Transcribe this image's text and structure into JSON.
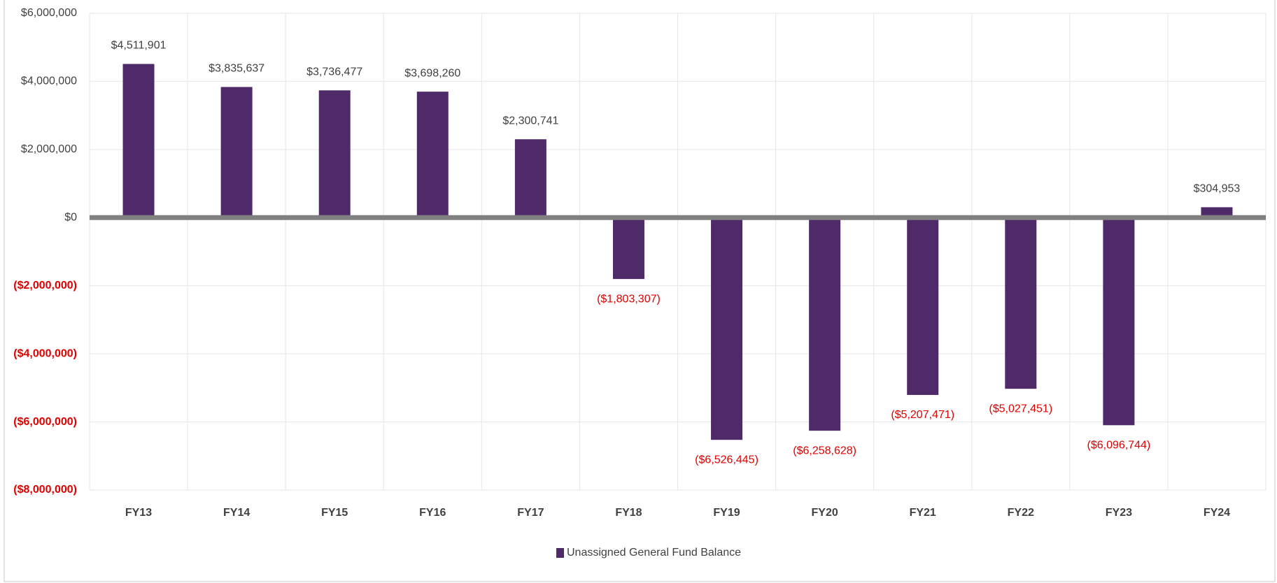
{
  "chart_data": {
    "type": "bar",
    "categories": [
      "FY13",
      "FY14",
      "FY15",
      "FY16",
      "FY17",
      "FY18",
      "FY19",
      "FY20",
      "FY21",
      "FY22",
      "FY23",
      "FY24"
    ],
    "series": [
      {
        "name": "Unassigned General Fund Balance",
        "color": "#4f2a68",
        "values": [
          4511901,
          3835637,
          3736477,
          3698260,
          2300741,
          -1803307,
          -6526445,
          -6258628,
          -5207471,
          -5027451,
          -6096744,
          304953
        ],
        "value_labels": [
          "$4,511,901",
          "$3,835,637",
          "$3,736,477",
          "$3,698,260",
          "$2,300,741",
          "($1,803,307)",
          "($6,526,445)",
          "($6,258,628)",
          "($5,207,471)",
          "($5,027,451)",
          "($6,096,744)",
          "$304,953"
        ]
      }
    ],
    "ylim": [
      -8000000,
      6000000
    ],
    "yticks": [
      {
        "value": 6000000,
        "label": "$6,000,000"
      },
      {
        "value": 4000000,
        "label": "$4,000,000"
      },
      {
        "value": 2000000,
        "label": "$2,000,000"
      },
      {
        "value": 0,
        "label": "$0"
      },
      {
        "value": -2000000,
        "label": "($2,000,000)"
      },
      {
        "value": -4000000,
        "label": "($4,000,000)"
      },
      {
        "value": -6000000,
        "label": "($6,000,000)"
      },
      {
        "value": -8000000,
        "label": "($8,000,000)"
      }
    ],
    "grid": true,
    "negative_color": "#e00000",
    "legend": "bottom"
  }
}
